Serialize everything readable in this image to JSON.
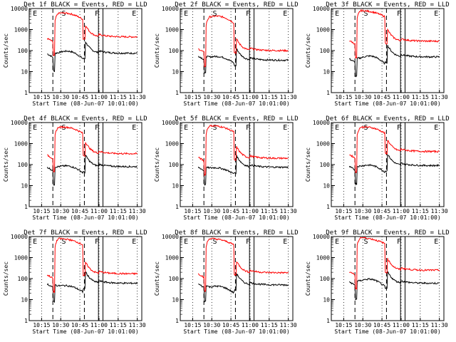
{
  "chart_data": [
    {
      "type": "line",
      "title": "Det 1f BLACK = Events, RED = LLD",
      "xlabel": "Start Time (08-Jun-07 10:01:00)",
      "ylabel": "Counts/sec",
      "xticks": [
        "10:15",
        "10:30",
        "10:45",
        "11:00",
        "11:15",
        "11:30"
      ],
      "yticks": [
        "1",
        "10",
        "100",
        "1000",
        "10000"
      ],
      "ylog": true,
      "ylim": [
        1,
        10000
      ],
      "markers": [
        "E",
        "S",
        "F",
        "E"
      ],
      "series": [
        {
          "color": "#000000",
          "profile": {
            "base": 70,
            "mid": 80,
            "peak": 300,
            "tail": 75
          }
        },
        {
          "color": "#ff0000",
          "profile": {
            "base": 380,
            "mid": 6000,
            "peak": 12000,
            "tail": 450
          }
        }
      ]
    },
    {
      "type": "line",
      "title": "Det 2f BLACK = Events, RED = LLD",
      "xlabel": "Start Time (08-Jun-07 10:01:00)",
      "ylabel": "Counts/sec",
      "xticks": [
        "10:15",
        "10:30",
        "10:45",
        "11:00",
        "11:15",
        "11:30"
      ],
      "yticks": [
        "1",
        "10",
        "100",
        "1000",
        "10000"
      ],
      "ylog": true,
      "ylim": [
        1,
        10000
      ],
      "markers": [
        "E",
        "S",
        "F",
        "E"
      ],
      "series": [
        {
          "color": "#000000",
          "profile": {
            "base": 55,
            "mid": 50,
            "peak": 120,
            "tail": 35
          }
        },
        {
          "color": "#ff0000",
          "profile": {
            "base": 120,
            "mid": 4000,
            "peak": 11000,
            "tail": 100
          }
        }
      ]
    },
    {
      "type": "line",
      "title": "Det 3f BLACK = Events, RED = LLD",
      "xlabel": "Start Time (08-Jun-07 10:01:00)",
      "ylabel": "Counts/sec",
      "xticks": [
        "10:15",
        "10:30",
        "10:45",
        "11:00",
        "11:15",
        "11:30"
      ],
      "yticks": [
        "1",
        "10",
        "100",
        "1000",
        "10000"
      ],
      "ylog": true,
      "ylim": [
        1,
        10000
      ],
      "markers": [
        "E",
        "S",
        "F",
        "E"
      ],
      "series": [
        {
          "color": "#000000",
          "profile": {
            "base": 40,
            "mid": 45,
            "peak": 200,
            "tail": 50
          }
        },
        {
          "color": "#ff0000",
          "profile": {
            "base": 300,
            "mid": 8000,
            "peak": 12000,
            "tail": 280
          }
        }
      ]
    },
    {
      "type": "line",
      "title": "Det 4f BLACK = Events, RED = LLD",
      "xlabel": "Start Time (08-Jun-07 10:01:00)",
      "ylabel": "Counts/sec",
      "xticks": [
        "10:15",
        "10:30",
        "10:45",
        "11:00",
        "11:15",
        "11:30"
      ],
      "yticks": [
        "1",
        "10",
        "100",
        "1000",
        "10000"
      ],
      "ylog": true,
      "ylim": [
        1,
        10000
      ],
      "markers": [
        "E",
        "S",
        "F",
        "E"
      ],
      "series": [
        {
          "color": "#000000",
          "profile": {
            "base": 75,
            "mid": 80,
            "peak": 220,
            "tail": 80
          }
        },
        {
          "color": "#ff0000",
          "profile": {
            "base": 280,
            "mid": 6000,
            "peak": 12000,
            "tail": 330
          }
        }
      ]
    },
    {
      "type": "line",
      "title": "Det 5f BLACK = Events, RED = LLD",
      "xlabel": "Start Time (08-Jun-07 10:01:00)",
      "ylabel": "Counts/sec",
      "xticks": [
        "10:15",
        "10:30",
        "10:45",
        "11:00",
        "11:15",
        "11:30"
      ],
      "yticks": [
        "1",
        "10",
        "100",
        "1000",
        "10000"
      ],
      "ylog": true,
      "ylim": [
        1,
        10000
      ],
      "markers": [
        "E",
        "S",
        "F",
        "E"
      ],
      "series": [
        {
          "color": "#000000",
          "profile": {
            "base": 75,
            "mid": 70,
            "peak": 140,
            "tail": 75
          }
        },
        {
          "color": "#ff0000",
          "profile": {
            "base": 220,
            "mid": 7000,
            "peak": 12000,
            "tail": 200
          }
        }
      ]
    },
    {
      "type": "line",
      "title": "Det 6f BLACK = Events, RED = LLD",
      "xlabel": "Start Time (08-Jun-07 10:01:00)",
      "ylabel": "Counts/sec",
      "xticks": [
        "10:15",
        "10:30",
        "10:45",
        "11:00",
        "11:15",
        "11:30"
      ],
      "yticks": [
        "1",
        "10",
        "100",
        "1000",
        "10000"
      ],
      "ylog": true,
      "ylim": [
        1,
        10000
      ],
      "markers": [
        "E",
        "S",
        "F",
        "E"
      ],
      "series": [
        {
          "color": "#000000",
          "profile": {
            "base": 80,
            "mid": 85,
            "peak": 260,
            "tail": 90
          }
        },
        {
          "color": "#ff0000",
          "profile": {
            "base": 300,
            "mid": 6000,
            "peak": 12000,
            "tail": 420
          }
        }
      ]
    },
    {
      "type": "line",
      "title": "Det 7f BLACK = Events, RED = LLD",
      "xlabel": "Start Time (08-Jun-07 10:01:00)",
      "ylabel": "Counts/sec",
      "xticks": [
        "10:15",
        "10:30",
        "10:45",
        "11:00",
        "11:15",
        "11:30"
      ],
      "yticks": [
        "1",
        "10",
        "100",
        "1000",
        "10000"
      ],
      "ylog": true,
      "ylim": [
        1,
        10000
      ],
      "markers": [
        "E",
        "S",
        "F",
        "E"
      ],
      "series": [
        {
          "color": "#000000",
          "profile": {
            "base": 55,
            "mid": 45,
            "peak": 100,
            "tail": 60
          }
        },
        {
          "color": "#ff0000",
          "profile": {
            "base": 150,
            "mid": 8000,
            "peak": 12000,
            "tail": 170
          }
        }
      ]
    },
    {
      "type": "line",
      "title": "Det 8f BLACK = Events, RED = LLD",
      "xlabel": "Start Time (08-Jun-07 10:01:00)",
      "ylabel": "Counts/sec",
      "xticks": [
        "10:15",
        "10:30",
        "10:45",
        "11:00",
        "11:15",
        "11:30"
      ],
      "yticks": [
        "1",
        "10",
        "100",
        "1000",
        "10000"
      ],
      "ylog": true,
      "ylim": [
        1,
        10000
      ],
      "markers": [
        "E",
        "S",
        "F",
        "E"
      ],
      "series": [
        {
          "color": "#000000",
          "profile": {
            "base": 55,
            "mid": 40,
            "peak": 110,
            "tail": 50
          }
        },
        {
          "color": "#ff0000",
          "profile": {
            "base": 170,
            "mid": 8000,
            "peak": 12000,
            "tail": 190
          }
        }
      ]
    },
    {
      "type": "line",
      "title": "Det 9f BLACK = Events, RED = LLD",
      "xlabel": "Start Time (08-Jun-07 10:01:00)",
      "ylabel": "Counts/sec",
      "xticks": [
        "10:15",
        "10:30",
        "10:45",
        "11:00",
        "11:15",
        "11:30"
      ],
      "yticks": [
        "1",
        "10",
        "100",
        "1000",
        "10000"
      ],
      "ylog": true,
      "ylim": [
        1,
        10000
      ],
      "markers": [
        "E",
        "S",
        "F",
        "E"
      ],
      "series": [
        {
          "color": "#000000",
          "profile": {
            "base": 70,
            "mid": 80,
            "peak": 300,
            "tail": 60
          }
        },
        {
          "color": "#ff0000",
          "profile": {
            "base": 220,
            "mid": 9000,
            "peak": 12000,
            "tail": 250
          }
        }
      ]
    }
  ]
}
